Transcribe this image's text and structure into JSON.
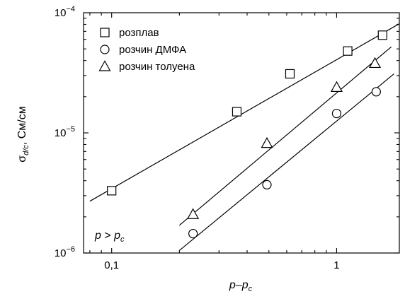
{
  "chart_data": {
    "type": "scatter",
    "xscale": "log",
    "yscale": "log",
    "xlim": [
      0.075,
      1.9
    ],
    "ylim": [
      1e-06,
      0.0001
    ],
    "xlabel": {
      "base": "p–p",
      "sub": "c"
    },
    "ylabel": {
      "sigma": "σ",
      "sub": "d/c",
      "unit": ", См/см"
    },
    "x_ticks": [
      {
        "value": 0.1,
        "label": "0,1"
      },
      {
        "value": 1,
        "label": "1"
      }
    ],
    "y_ticks": [
      {
        "value": 1e-06,
        "base": "10",
        "exp": "−6"
      },
      {
        "value": 1e-05,
        "base": "10",
        "exp": "−5"
      },
      {
        "value": 0.0001,
        "base": "10",
        "exp": "−4"
      }
    ],
    "annotation": {
      "left": "p",
      "op": " > ",
      "right": "p",
      "sub": "c"
    },
    "legend_position": "top-left",
    "grid": false,
    "series": [
      {
        "name": "розплав",
        "marker": "square",
        "points": [
          [
            0.1,
            3.3e-06
          ],
          [
            0.36,
            1.5e-05
          ],
          [
            0.62,
            3.1e-05
          ],
          [
            1.12,
            4.8e-05
          ],
          [
            1.6,
            6.5e-05
          ]
        ],
        "fit": [
          [
            0.08,
            2.7e-06
          ],
          [
            1.9,
            8.1e-05
          ]
        ]
      },
      {
        "name": "розчин ДМФА",
        "marker": "circle",
        "points": [
          [
            0.23,
            1.45e-06
          ],
          [
            0.49,
            3.7e-06
          ],
          [
            1.0,
            1.45e-05
          ],
          [
            1.5,
            2.2e-05
          ]
        ],
        "fit": [
          [
            0.2,
            1.05e-06
          ],
          [
            1.8,
            3.1e-05
          ]
        ]
      },
      {
        "name": "розчин толуена",
        "marker": "triangle",
        "points": [
          [
            0.23,
            2.1e-06
          ],
          [
            0.49,
            8.2e-06
          ],
          [
            1.0,
            2.4e-05
          ],
          [
            1.48,
            3.8e-05
          ]
        ],
        "fit": [
          [
            0.2,
            1.7e-06
          ],
          [
            1.75,
            5.2e-05
          ]
        ]
      }
    ]
  }
}
